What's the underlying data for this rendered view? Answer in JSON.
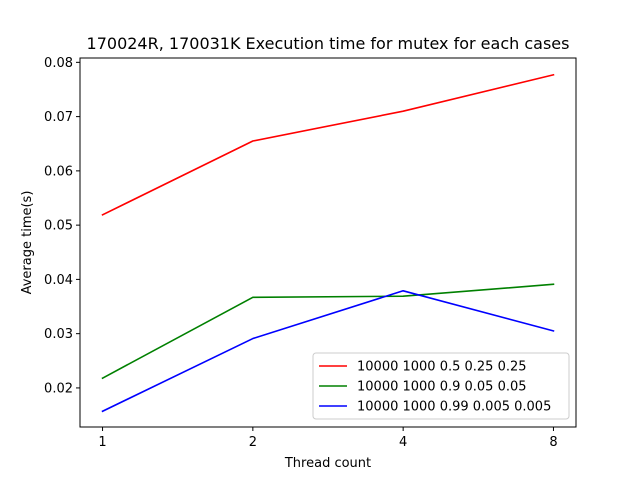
{
  "chart_data": {
    "type": "line",
    "title": "170024R, 170031K Execution time for mutex for each cases",
    "xlabel": "Thread count",
    "ylabel": "Average time(s)",
    "categories": [
      "1",
      "2",
      "4",
      "8"
    ],
    "xlim": [
      0.85,
      4.15
    ],
    "ylim": [
      0.0128,
      0.0808
    ],
    "yticks": [
      0.02,
      0.03,
      0.04,
      0.05,
      0.06,
      0.07,
      0.08
    ],
    "ytick_labels": [
      "0.02",
      "0.03",
      "0.04",
      "0.05",
      "0.06",
      "0.07",
      "0.08"
    ],
    "grid": false,
    "legend_position": "lower-right",
    "series": [
      {
        "name": "10000 1000 0.5 0.25 0.25",
        "color": "#ff0000",
        "values": [
          0.0519,
          0.0655,
          0.071,
          0.0777
        ]
      },
      {
        "name": "10000 1000 0.9 0.05 0.05",
        "color": "#008000",
        "values": [
          0.0218,
          0.0367,
          0.0369,
          0.0391
        ]
      },
      {
        "name": "10000 1000 0.99 0.005 0.005",
        "color": "#0000ff",
        "values": [
          0.0157,
          0.0291,
          0.0379,
          0.0305
        ]
      }
    ]
  }
}
